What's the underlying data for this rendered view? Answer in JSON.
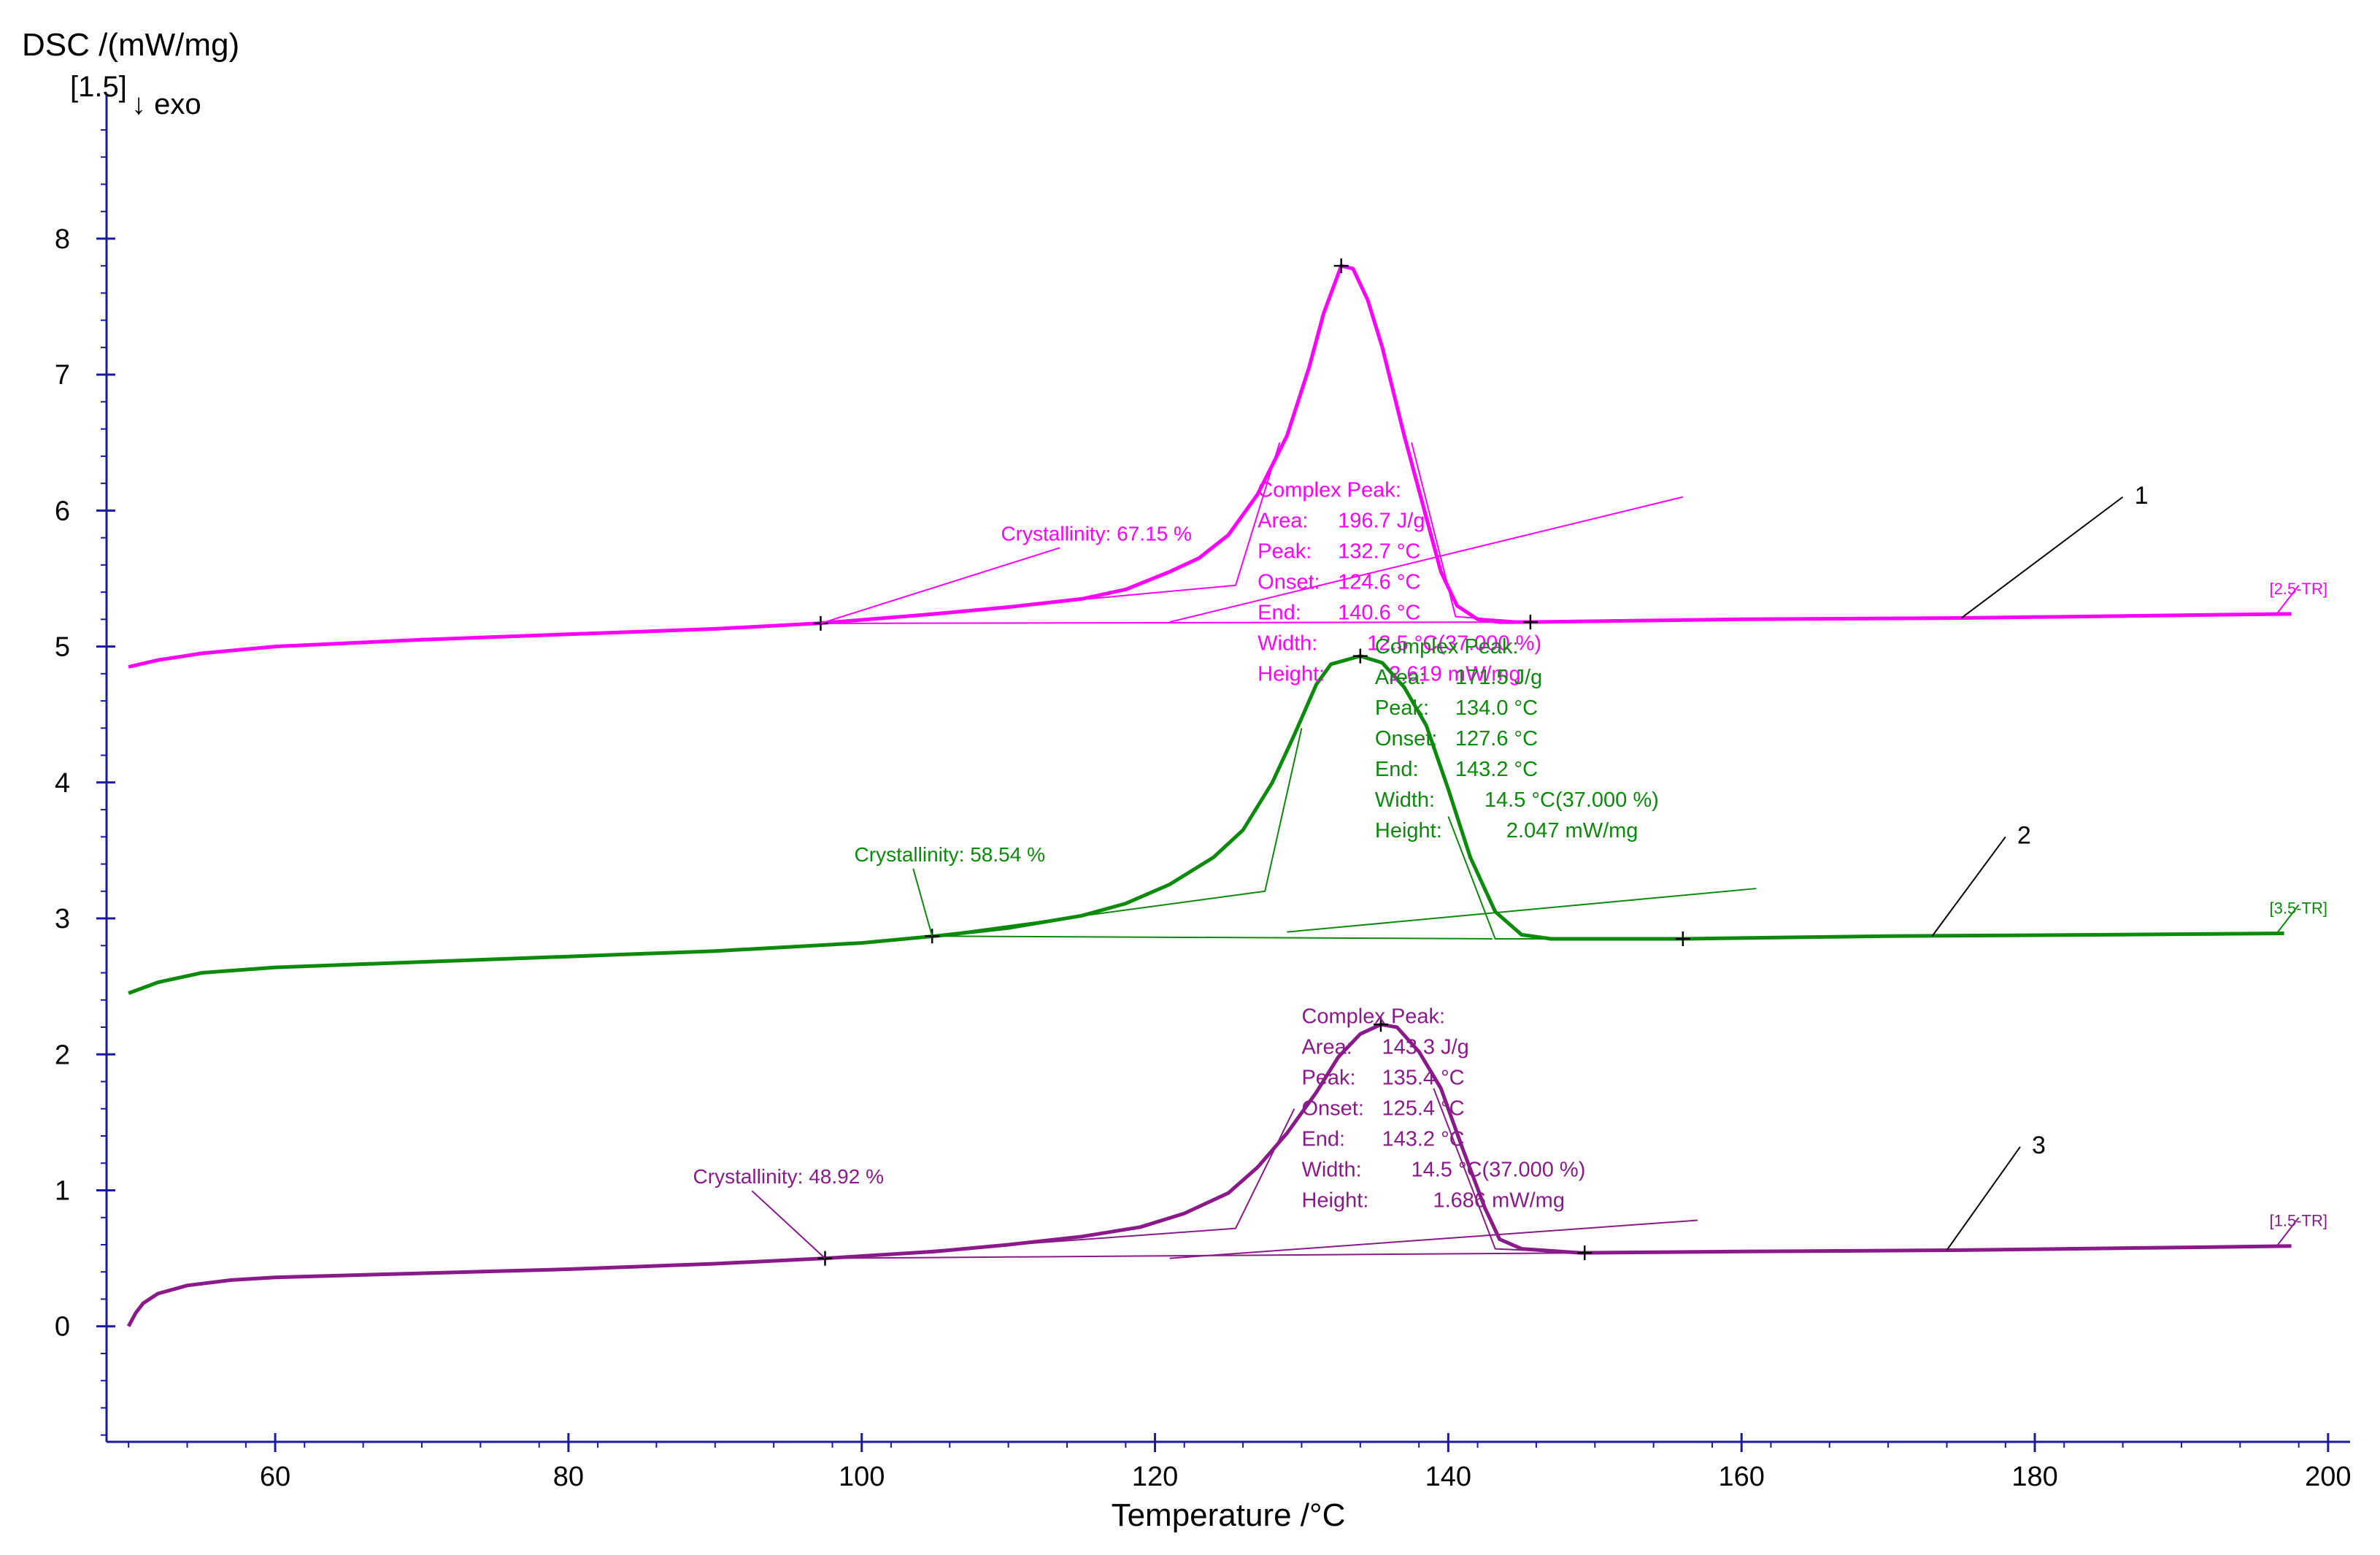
{
  "chart_data": {
    "type": "line",
    "ylabel": "DSC /(mW/mg)",
    "ylabel_scale": "[1.5]",
    "exo_label": "↓ exo",
    "xlabel": "Temperature /°C",
    "xlim": [
      48.5,
      201.5
    ],
    "ylim": [
      -0.85,
      8.95
    ],
    "xticks": [
      "60",
      "80",
      "100",
      "120",
      "140",
      "160",
      "180",
      "200"
    ],
    "yticks": [
      "0",
      "1",
      "2",
      "3",
      "4",
      "5",
      "6",
      "7",
      "8"
    ],
    "series": [
      {
        "name": "1",
        "color": "#ff00ff",
        "range_tag": "[2.5-TR]",
        "crystallinity": "Crystallinity: 67.15 %",
        "peak_box": {
          "title": "Complex Peak:",
          "rows": [
            {
              "label": "Area:",
              "value": "196.7 J/g"
            },
            {
              "label": "Peak:",
              "value": "132.7 °C"
            },
            {
              "label": "Onset:",
              "value": "124.6 °C"
            },
            {
              "label": "End:",
              "value": "140.6 °C"
            },
            {
              "label": "Width:",
              "value": "12.5 °C(37.000 %)"
            },
            {
              "label": "Height:",
              "value": "2.619 mW/mg"
            }
          ]
        },
        "points": [
          [
            50,
            4.85
          ],
          [
            52,
            4.9
          ],
          [
            55,
            4.95
          ],
          [
            60,
            5.0
          ],
          [
            70,
            5.05
          ],
          [
            80,
            5.09
          ],
          [
            90,
            5.13
          ],
          [
            97,
            5.17
          ],
          [
            105,
            5.24
          ],
          [
            110,
            5.29
          ],
          [
            115,
            5.35
          ],
          [
            118,
            5.42
          ],
          [
            121,
            5.55
          ],
          [
            123,
            5.65
          ],
          [
            125,
            5.82
          ],
          [
            127,
            6.12
          ],
          [
            129,
            6.55
          ],
          [
            130.5,
            7.05
          ],
          [
            131.5,
            7.45
          ],
          [
            132.7,
            7.8
          ],
          [
            133.5,
            7.78
          ],
          [
            134.5,
            7.55
          ],
          [
            135.5,
            7.2
          ],
          [
            137,
            6.55
          ],
          [
            138.5,
            5.95
          ],
          [
            139.5,
            5.55
          ],
          [
            140.6,
            5.3
          ],
          [
            142,
            5.2
          ],
          [
            143.5,
            5.18
          ],
          [
            145.5,
            5.18
          ],
          [
            160,
            5.2
          ],
          [
            175,
            5.21
          ],
          [
            190,
            5.23
          ],
          [
            197.5,
            5.24
          ]
        ],
        "markers": [
          [
            97.2,
            5.17
          ],
          [
            132.7,
            7.8
          ],
          [
            145.6,
            5.18
          ]
        ]
      },
      {
        "name": "2",
        "color": "#0b8a0b",
        "range_tag": "[3.5-TR]",
        "crystallinity": "Crystallinity: 58.54 %",
        "peak_box": {
          "title": "Complex Peak:",
          "rows": [
            {
              "label": "Area:",
              "value": "171.5 J/g"
            },
            {
              "label": "Peak:",
              "value": "134.0 °C"
            },
            {
              "label": "Onset:",
              "value": "127.6 °C"
            },
            {
              "label": "End:",
              "value": "143.2 °C"
            },
            {
              "label": "Width:",
              "value": "14.5 °C(37.000 %)"
            },
            {
              "label": "Height:",
              "value": "2.047 mW/mg"
            }
          ]
        },
        "points": [
          [
            50,
            2.45
          ],
          [
            52,
            2.53
          ],
          [
            55,
            2.6
          ],
          [
            60,
            2.64
          ],
          [
            70,
            2.68
          ],
          [
            80,
            2.72
          ],
          [
            90,
            2.76
          ],
          [
            100,
            2.82
          ],
          [
            105,
            2.87
          ],
          [
            110,
            2.93
          ],
          [
            115,
            3.02
          ],
          [
            118,
            3.11
          ],
          [
            121,
            3.25
          ],
          [
            124,
            3.45
          ],
          [
            126,
            3.65
          ],
          [
            128,
            4.0
          ],
          [
            129.5,
            4.35
          ],
          [
            131,
            4.72
          ],
          [
            132,
            4.87
          ],
          [
            134,
            4.93
          ],
          [
            135.5,
            4.88
          ],
          [
            137,
            4.7
          ],
          [
            138.5,
            4.42
          ],
          [
            140,
            3.95
          ],
          [
            141.5,
            3.45
          ],
          [
            143.2,
            3.05
          ],
          [
            145,
            2.88
          ],
          [
            147,
            2.85
          ],
          [
            156,
            2.85
          ],
          [
            170,
            2.87
          ],
          [
            185,
            2.88
          ],
          [
            197,
            2.89
          ]
        ],
        "markers": [
          [
            104.8,
            2.87
          ],
          [
            134.0,
            4.93
          ],
          [
            156.0,
            2.85
          ]
        ]
      },
      {
        "name": "3",
        "color": "#8a1a8a",
        "range_tag": "[1.5-TR]",
        "crystallinity": "Crystallinity: 48.92 %",
        "peak_box": {
          "title": "Complex Peak:",
          "rows": [
            {
              "label": "Area:",
              "value": "143.3 J/g"
            },
            {
              "label": "Peak:",
              "value": "135.4 °C"
            },
            {
              "label": "Onset:",
              "value": "125.4 °C"
            },
            {
              "label": "End:",
              "value": "143.2 °C"
            },
            {
              "label": "Width:",
              "value": "14.5 °C(37.000 %)"
            },
            {
              "label": "Height:",
              "value": "1.686 mW/mg"
            }
          ]
        },
        "points": [
          [
            50,
            0.0
          ],
          [
            50.5,
            0.1
          ],
          [
            51,
            0.17
          ],
          [
            52,
            0.24
          ],
          [
            54,
            0.3
          ],
          [
            57,
            0.34
          ],
          [
            60,
            0.36
          ],
          [
            70,
            0.39
          ],
          [
            80,
            0.42
          ],
          [
            90,
            0.46
          ],
          [
            97.5,
            0.5
          ],
          [
            105,
            0.55
          ],
          [
            110,
            0.6
          ],
          [
            115,
            0.66
          ],
          [
            119,
            0.73
          ],
          [
            122,
            0.83
          ],
          [
            125,
            0.98
          ],
          [
            127,
            1.17
          ],
          [
            129,
            1.42
          ],
          [
            131,
            1.72
          ],
          [
            132.5,
            1.98
          ],
          [
            134,
            2.15
          ],
          [
            135.4,
            2.22
          ],
          [
            136.5,
            2.2
          ],
          [
            138,
            2.02
          ],
          [
            139.5,
            1.75
          ],
          [
            141,
            1.3
          ],
          [
            142.5,
            0.87
          ],
          [
            143.5,
            0.64
          ],
          [
            145,
            0.57
          ],
          [
            149,
            0.54
          ],
          [
            160,
            0.55
          ],
          [
            175,
            0.56
          ],
          [
            190,
            0.58
          ],
          [
            197.5,
            0.59
          ]
        ],
        "markers": [
          [
            97.5,
            0.5
          ],
          [
            135.4,
            2.22
          ],
          [
            149.3,
            0.54
          ]
        ]
      }
    ]
  }
}
